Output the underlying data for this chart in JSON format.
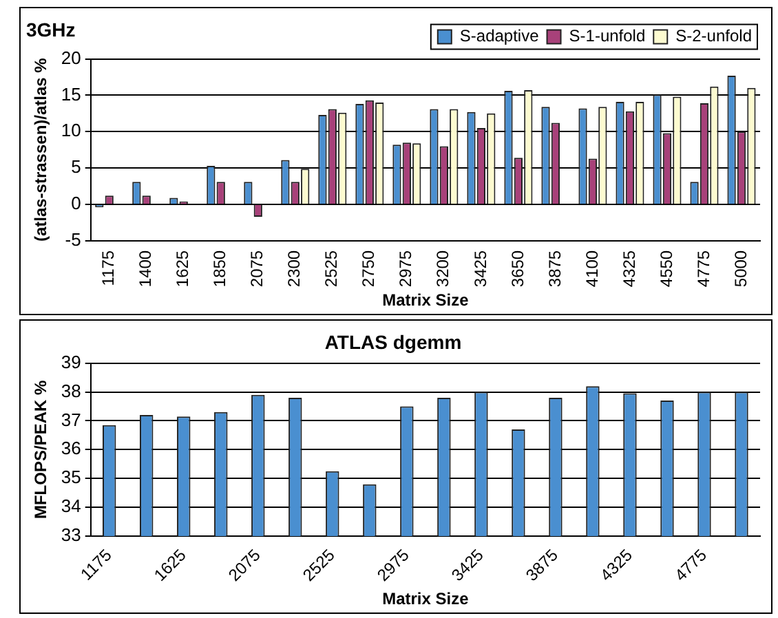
{
  "chart_data": [
    {
      "type": "bar",
      "title": "3GHz",
      "xlabel": "Matrix Size",
      "ylabel": "(atlas-strassen)/atlas %",
      "categories": [
        "1175",
        "1400",
        "1625",
        "1850",
        "2075",
        "2300",
        "2525",
        "2750",
        "2975",
        "3200",
        "3425",
        "3650",
        "3875",
        "4100",
        "4325",
        "4550",
        "4775",
        "5000"
      ],
      "series": [
        {
          "name": "S-adaptive",
          "color": "#4a8fd0",
          "values": [
            -0.4,
            3.1,
            0.9,
            5.3,
            3.1,
            6.1,
            12.3,
            13.8,
            8.2,
            13.1,
            12.7,
            15.6,
            13.4,
            13.2,
            14.1,
            15.1,
            3.1,
            17.7
          ]
        },
        {
          "name": "S-1-unfold",
          "color": "#a8417a",
          "values": [
            1.2,
            1.2,
            0.4,
            3.1,
            -1.7,
            3.1,
            13.1,
            14.3,
            8.5,
            8.0,
            10.5,
            6.4,
            11.2,
            6.3,
            12.8,
            9.8,
            13.9,
            10.0
          ]
        },
        {
          "name": "S-2-unfold",
          "color": "#fdfbd0",
          "values": [
            null,
            null,
            null,
            null,
            null,
            4.9,
            12.6,
            14.0,
            8.4,
            13.1,
            12.5,
            15.7,
            null,
            13.4,
            14.1,
            14.8,
            16.2,
            16.0
          ]
        }
      ],
      "ylim": [
        -5,
        20
      ],
      "yticks": [
        -5,
        0,
        5,
        10,
        15,
        20
      ],
      "grid": "y",
      "legend": "top right"
    },
    {
      "type": "bar",
      "title": "ATLAS dgemm",
      "xlabel": "Matrix Size",
      "ylabel": "MFLOPS/PEAK %",
      "categories": [
        "1175",
        null,
        "1625",
        null,
        "2075",
        null,
        "2525",
        null,
        "2975",
        null,
        "3425",
        null,
        "3875",
        null,
        "4325",
        null,
        "4775",
        null
      ],
      "series": [
        {
          "color": "#4a8fd0",
          "values": [
            36.85,
            37.2,
            37.15,
            37.3,
            37.9,
            37.8,
            35.25,
            34.8,
            37.5,
            37.8,
            38.0,
            36.7,
            37.8,
            38.2,
            37.95,
            37.7,
            38.0,
            38.0
          ]
        }
      ],
      "ylim": [
        33,
        39
      ],
      "yticks": [
        33,
        34,
        35,
        36,
        37,
        38,
        39
      ],
      "grid": "y"
    }
  ]
}
